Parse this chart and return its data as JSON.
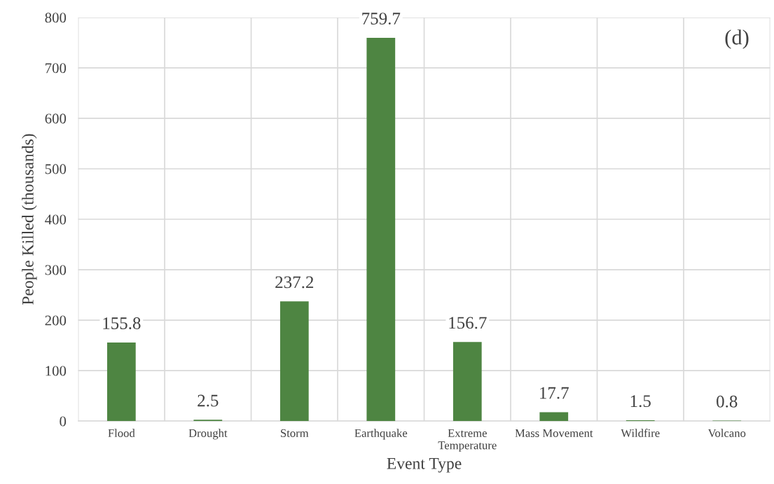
{
  "chart_data": {
    "type": "bar",
    "xlabel": "Event Type",
    "ylabel": "People Killed (thousands)",
    "categories": [
      "Flood",
      "Drought",
      "Storm",
      "Earthquake",
      "Extreme\nTemperature",
      "Mass Movement",
      "Wildfire",
      "Volcano"
    ],
    "values": [
      155.8,
      2.5,
      237.2,
      759.7,
      156.7,
      17.7,
      1.5,
      0.8
    ],
    "color": "#4e8542",
    "ylim": [
      0,
      800
    ],
    "yticks": [
      0,
      100,
      200,
      300,
      400,
      500,
      600,
      700,
      800
    ],
    "grid": true,
    "data_labels": true,
    "annotations": [
      "(d)"
    ]
  }
}
